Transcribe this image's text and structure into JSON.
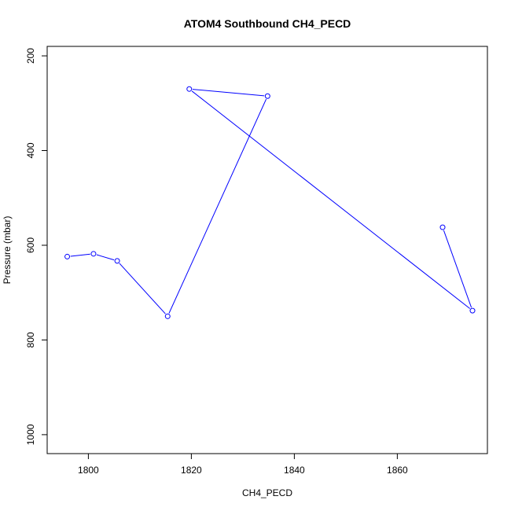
{
  "chart_data": {
    "type": "line",
    "title": "ATOM4 Southbound CH4_PECD",
    "xlabel": "CH4_PECD",
    "ylabel": "Pressure (mbar)",
    "xlim": [
      1792.0,
      1877.5
    ],
    "ylim": [
      1040,
      180
    ],
    "y_reversed": true,
    "x_ticks": [
      1800,
      1820,
      1840,
      1860
    ],
    "y_ticks": [
      200,
      400,
      600,
      800,
      1000
    ],
    "grid": false,
    "series": [
      {
        "color": "#0000ff",
        "marker": "open-circle",
        "points": [
          {
            "x": 1795.9,
            "y": 624
          },
          {
            "x": 1801.0,
            "y": 618
          },
          {
            "x": 1805.6,
            "y": 633
          },
          {
            "x": 1815.4,
            "y": 750
          },
          {
            "x": 1834.8,
            "y": 285
          },
          {
            "x": 1819.6,
            "y": 270
          },
          {
            "x": 1874.6,
            "y": 738
          },
          {
            "x": 1868.8,
            "y": 562
          }
        ]
      }
    ]
  }
}
